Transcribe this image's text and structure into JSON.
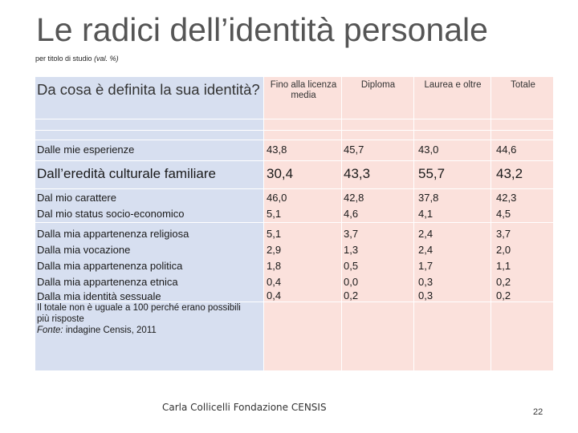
{
  "title": "Le radici dell’identità personale",
  "subtitle_main": "per titolo di studio",
  "subtitle_unit": "(val. %)",
  "question": "Da cosa è definita la sua identità?",
  "columns": [
    "Fino alla licenza media",
    "Diploma",
    "Laurea e oltre",
    "Totale"
  ],
  "rows": [
    {
      "label": "Dalle mie esperienze",
      "values": [
        "43,8",
        "45,7",
        "43,0",
        "44,6"
      ]
    },
    {
      "label": "Dall’eredità culturale familiare",
      "values": [
        "30,4",
        "43,3",
        "55,7",
        "43,2"
      ]
    },
    {
      "label": "Dal mio carattere",
      "values": [
        "46,0",
        "42,8",
        "37,8",
        "42,3"
      ]
    },
    {
      "label": "Dal mio status socio-economico",
      "values": [
        "5,1",
        "4,6",
        "4,1",
        "4,5"
      ]
    },
    {
      "label": "Dalla mia appartenenza religiosa",
      "values": [
        "5,1",
        "3,7",
        "2,4",
        "3,7"
      ]
    },
    {
      "label": "Dalla mia vocazione",
      "values": [
        "2,9",
        "1,3",
        "2,4",
        "2,0"
      ]
    },
    {
      "label": "Dalla mia appartenenza politica",
      "values": [
        "1,8",
        "0,5",
        "1,7",
        "1,1"
      ]
    },
    {
      "label": "Dalla mia appartenenza etnica",
      "values": [
        "0,4",
        "0,0",
        "0,3",
        "0,2"
      ]
    },
    {
      "label": "Dalla mia identità sessuale",
      "values": [
        "0,4",
        "0,2",
        "0,3",
        "0,2"
      ]
    }
  ],
  "note_line": "Il totale non è uguale a 100 perché erano possibili più risposte",
  "source_label": "Fonte:",
  "source_text": "indagine Censis, 2011",
  "footer": "Carla Collicelli Fondazione CENSIS",
  "page_number": "22"
}
